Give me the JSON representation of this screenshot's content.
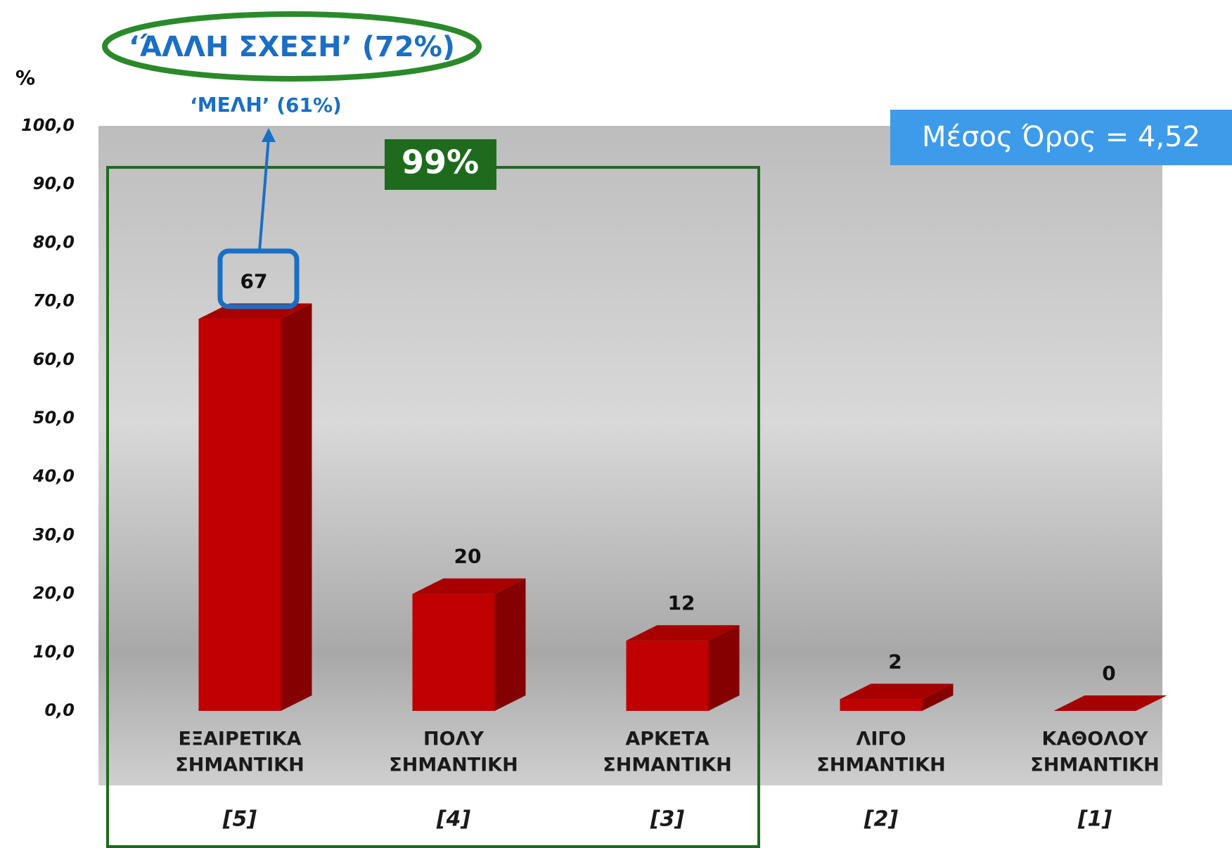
{
  "chart_data": {
    "type": "bar3d",
    "y_label": "%",
    "categories": [
      [
        "ΕΞΑΙΡΕΤΙΚΑ",
        "ΣΗΜΑΝΤΙΚΗ"
      ],
      [
        "ΠΟΛΥ",
        "ΣΗΜΑΝΤΙΚΗ"
      ],
      [
        "ΑΡΚΕΤΑ",
        "ΣΗΜΑΝΤΙΚΗ"
      ],
      [
        "ΛΙΓΟ",
        "ΣΗΜΑΝΤΙΚΗ"
      ],
      [
        "ΚΑΘΟΛΟΥ",
        "ΣΗΜΑΝΤΙΚΗ"
      ]
    ],
    "codes": [
      "[5]",
      "[4]",
      "[3]",
      "[2]",
      "[1]"
    ],
    "values": [
      67,
      20,
      12,
      2,
      0
    ],
    "color": "#c00000",
    "ylim": [
      0,
      100
    ],
    "yticks": [
      {
        "value": 0,
        "label": "0,0"
      },
      {
        "value": 10,
        "label": "10,0"
      },
      {
        "value": 20,
        "label": "20,0"
      },
      {
        "value": 30,
        "label": "30,0"
      },
      {
        "value": 40,
        "label": "40,0"
      },
      {
        "value": 50,
        "label": "50,0"
      },
      {
        "value": 60,
        "label": "60,0"
      },
      {
        "value": 70,
        "label": "70,0"
      },
      {
        "value": 80,
        "label": "80,0"
      },
      {
        "value": 90,
        "label": "90,0"
      },
      {
        "value": 100,
        "label": "100,0"
      }
    ],
    "annotations": {
      "other_relation": "‘ΆΛΛΗ ΣΧΕΣΗ’ (72%)",
      "members": "‘ΜΕΛΗ’ (61%)",
      "top_three": "99%",
      "mean": "Μέσος Όρος = 4,52"
    }
  }
}
